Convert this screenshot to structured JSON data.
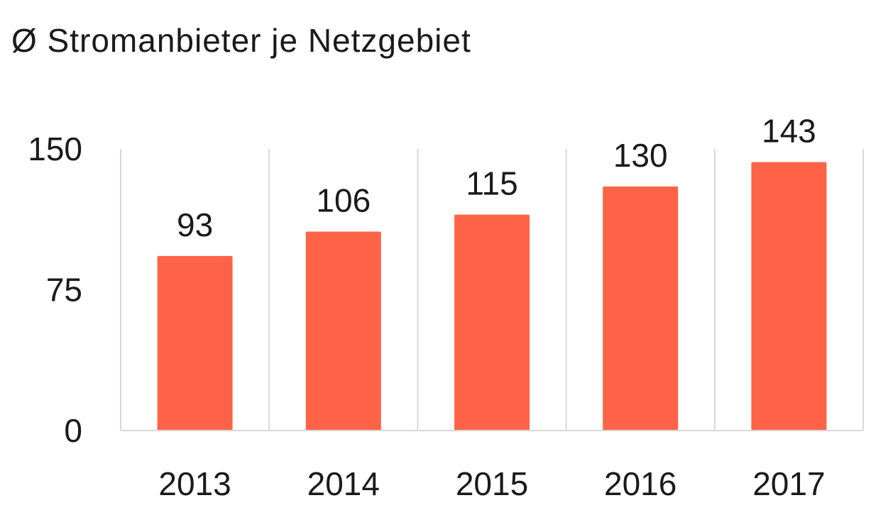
{
  "chart_data": {
    "type": "bar",
    "title": "Ø Stromanbieter je Netzgebiet",
    "categories": [
      "2013",
      "2014",
      "2015",
      "2016",
      "2017"
    ],
    "values": [
      93,
      106,
      115,
      130,
      143
    ],
    "data_labels": [
      "93",
      "106",
      "115",
      "130",
      "143"
    ],
    "yticks": [
      "0",
      "75",
      "150"
    ],
    "ylim": [
      0,
      150
    ],
    "xlabel": "",
    "ylabel": "",
    "grid": "vertical separators between categories",
    "legend": "none",
    "bar_color": "#ff6347",
    "grid_color": "#d9d9d9"
  }
}
